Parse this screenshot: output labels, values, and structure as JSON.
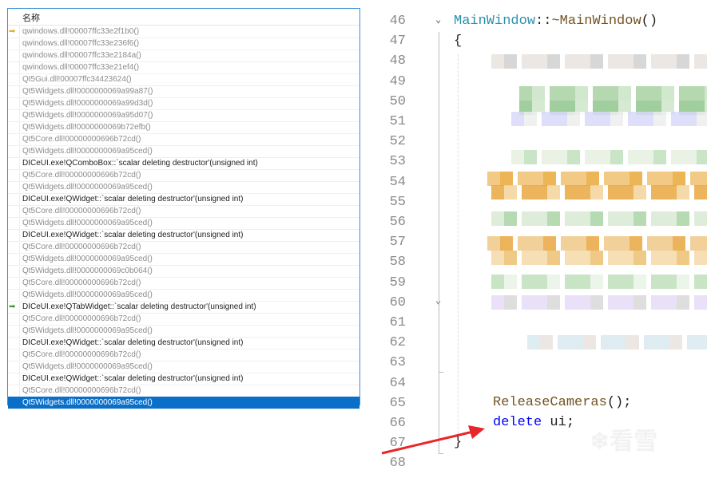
{
  "call_stack": {
    "column_header": "名称",
    "frames": [
      {
        "text": "qwindows.dll!00007ffc33e2f1b0()",
        "user": false,
        "marker": "current-frame-arrow"
      },
      {
        "text": "qwindows.dll!00007ffc33e236f6()",
        "user": false
      },
      {
        "text": "qwindows.dll!00007ffc33e2184a()",
        "user": false
      },
      {
        "text": "qwindows.dll!00007ffc33e21ef4()",
        "user": false
      },
      {
        "text": "Qt5Gui.dll!00007ffc34423624()",
        "user": false
      },
      {
        "text": "Qt5Widgets.dll!0000000069a99a87()",
        "user": false
      },
      {
        "text": "Qt5Widgets.dll!0000000069a99d3d()",
        "user": false
      },
      {
        "text": "Qt5Widgets.dll!0000000069a95d07()",
        "user": false
      },
      {
        "text": "Qt5Widgets.dll!0000000069b72efb()",
        "user": false
      },
      {
        "text": "Qt5Core.dll!00000000696b72cd()",
        "user": false
      },
      {
        "text": "Qt5Widgets.dll!0000000069a95ced()",
        "user": false
      },
      {
        "text": "DICeUI.exe!QComboBox::`scalar deleting destructor'(unsigned int)",
        "user": true
      },
      {
        "text": "Qt5Core.dll!00000000696b72cd()",
        "user": false
      },
      {
        "text": "Qt5Widgets.dll!0000000069a95ced()",
        "user": false
      },
      {
        "text": "DICeUI.exe!QWidget::`scalar deleting destructor'(unsigned int)",
        "user": true
      },
      {
        "text": "Qt5Core.dll!00000000696b72cd()",
        "user": false
      },
      {
        "text": "Qt5Widgets.dll!0000000069a95ced()",
        "user": false
      },
      {
        "text": "DICeUI.exe!QWidget::`scalar deleting destructor'(unsigned int)",
        "user": true
      },
      {
        "text": "Qt5Core.dll!00000000696b72cd()",
        "user": false
      },
      {
        "text": "Qt5Widgets.dll!0000000069a95ced()",
        "user": false
      },
      {
        "text": "Qt5Widgets.dll!0000000069c0b064()",
        "user": false
      },
      {
        "text": "Qt5Core.dll!00000000696b72cd()",
        "user": false
      },
      {
        "text": "Qt5Widgets.dll!0000000069a95ced()",
        "user": false
      },
      {
        "text": "DICeUI.exe!QTabWidget::`scalar deleting destructor'(unsigned int)",
        "user": true,
        "marker": "return-arrow"
      },
      {
        "text": "Qt5Core.dll!00000000696b72cd()",
        "user": false
      },
      {
        "text": "Qt5Widgets.dll!0000000069a95ced()",
        "user": false
      },
      {
        "text": "DICeUI.exe!QWidget::`scalar deleting destructor'(unsigned int)",
        "user": true
      },
      {
        "text": "Qt5Core.dll!00000000696b72cd()",
        "user": false
      },
      {
        "text": "Qt5Widgets.dll!0000000069a95ced()",
        "user": false
      },
      {
        "text": "DICeUI.exe!QWidget::`scalar deleting destructor'(unsigned int)",
        "user": true
      },
      {
        "text": "Qt5Core.dll!00000000696b72cd()",
        "user": false
      },
      {
        "text": "Qt5Widgets.dll!0000000069a95ced()",
        "user": false,
        "selected": true
      }
    ]
  },
  "editor": {
    "line_numbers": [
      "46",
      "47",
      "48",
      "49",
      "50",
      "51",
      "52",
      "53",
      "54",
      "55",
      "56",
      "57",
      "58",
      "59",
      "60",
      "61",
      "62",
      "63",
      "64",
      "65",
      "66",
      "67",
      "68"
    ],
    "signature": {
      "class": "MainWindow",
      "sep": "::",
      "name": "~MainWindow",
      "parens": "()"
    },
    "open_brace": "{",
    "close_brace": "}",
    "release_call": {
      "name": "ReleaseCameras",
      "rest": "();"
    },
    "delete_stmt": {
      "keyword": "delete",
      "rest": " ui;"
    },
    "colors": {
      "type": "#2b91af",
      "function": "#74531f",
      "keyword": "#0000ff",
      "text": "#1e1e1e"
    }
  },
  "watermark": "看雪"
}
